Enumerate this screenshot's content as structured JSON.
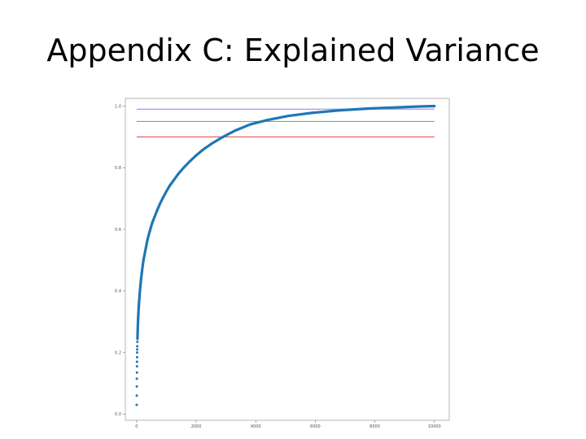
{
  "slide": {
    "title": "Appendix C: Explained Variance"
  },
  "chart_data": {
    "type": "scatter",
    "title": "",
    "xlabel": "",
    "ylabel": "",
    "xlim": [
      -380,
      10500
    ],
    "ylim": [
      -0.02,
      1.025
    ],
    "xticks": [
      0,
      2000,
      4000,
      6000,
      8000,
      10000
    ],
    "yticks": [
      0.0,
      0.2,
      0.4,
      0.6,
      0.8,
      1.0
    ],
    "xtick_labels": [
      "0",
      "2000",
      "4000",
      "6000",
      "8000",
      "10000"
    ],
    "ytick_labels": [
      "0.0",
      "0.2",
      "0.4",
      "0.6",
      "0.8",
      "1.0"
    ],
    "grid": false,
    "series": [
      {
        "color": "#1f77b4",
        "points": [
          [
            1,
            0.03
          ],
          [
            3,
            0.06
          ],
          [
            5,
            0.09
          ],
          [
            7,
            0.115
          ],
          [
            9,
            0.135
          ],
          [
            11,
            0.155
          ],
          [
            13,
            0.17
          ],
          [
            15,
            0.185
          ],
          [
            17,
            0.2
          ],
          [
            19,
            0.21
          ],
          [
            21,
            0.22
          ],
          [
            24,
            0.235
          ],
          [
            27,
            0.245
          ],
          [
            30,
            0.255
          ],
          [
            34,
            0.27
          ],
          [
            38,
            0.28
          ],
          [
            43,
            0.295
          ],
          [
            50,
            0.31
          ],
          [
            60,
            0.33
          ],
          [
            75,
            0.355
          ],
          [
            90,
            0.375
          ],
          [
            110,
            0.4
          ],
          [
            130,
            0.42
          ],
          [
            150,
            0.44
          ],
          [
            175,
            0.46
          ],
          [
            200,
            0.48
          ],
          [
            230,
            0.5
          ],
          [
            270,
            0.52
          ],
          [
            310,
            0.54
          ],
          [
            350,
            0.56
          ],
          [
            400,
            0.58
          ],
          [
            460,
            0.6
          ],
          [
            520,
            0.62
          ],
          [
            600,
            0.64
          ],
          [
            680,
            0.66
          ],
          [
            770,
            0.68
          ],
          [
            870,
            0.7
          ],
          [
            980,
            0.72
          ],
          [
            1100,
            0.74
          ],
          [
            1250,
            0.76
          ],
          [
            1400,
            0.78
          ],
          [
            1580,
            0.8
          ],
          [
            1780,
            0.82
          ],
          [
            2000,
            0.84
          ],
          [
            2250,
            0.86
          ],
          [
            2550,
            0.88
          ],
          [
            2900,
            0.9
          ],
          [
            3300,
            0.92
          ],
          [
            3800,
            0.94
          ],
          [
            4400,
            0.955
          ],
          [
            5100,
            0.968
          ],
          [
            5900,
            0.978
          ],
          [
            6800,
            0.986
          ],
          [
            7800,
            0.992
          ],
          [
            8800,
            0.996
          ],
          [
            9600,
            0.999
          ],
          [
            10000,
            1.0
          ]
        ]
      }
    ],
    "reference_lines": [
      {
        "y": 0.99,
        "color": "#8080ff"
      },
      {
        "y": 0.95,
        "color": "#4caf50"
      },
      {
        "y": 0.9,
        "color": "#e04040"
      }
    ]
  }
}
